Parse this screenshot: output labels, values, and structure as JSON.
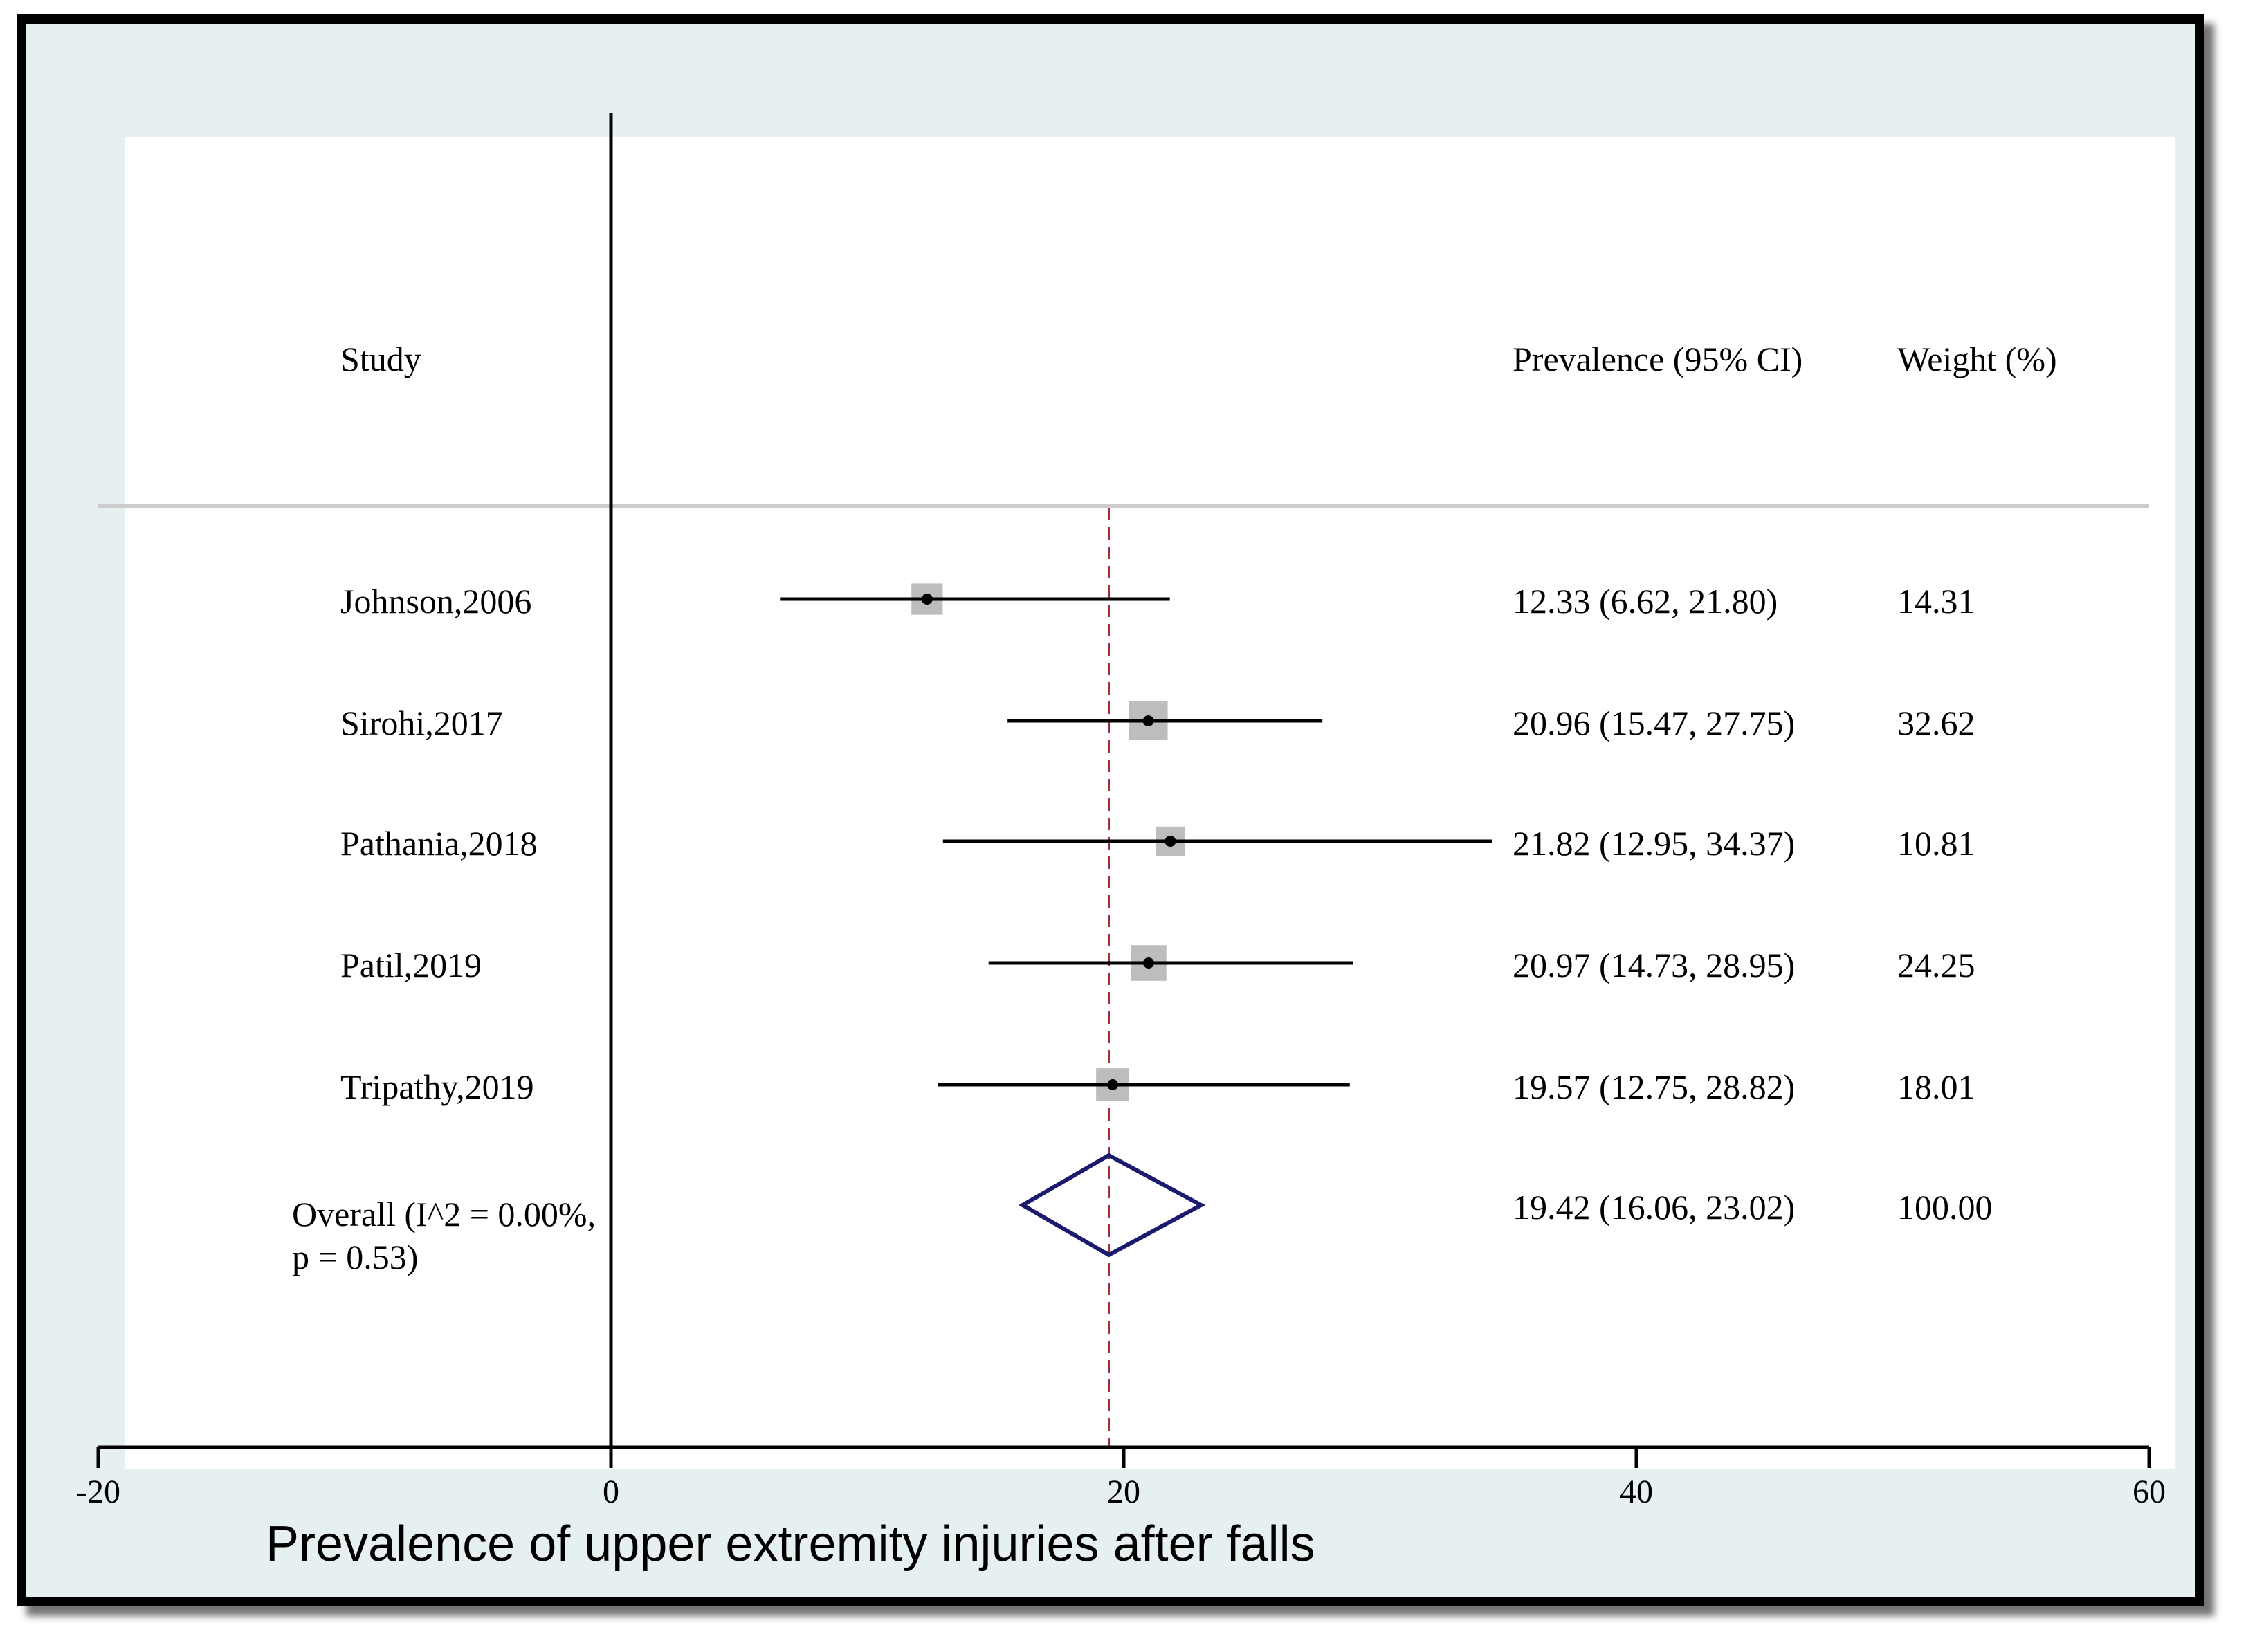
{
  "chart_data": {
    "type": "forest",
    "xlabel": "Prevalence of upper extremity injuries after falls",
    "xlim": [
      -20,
      60
    ],
    "xticks": [
      -20,
      0,
      20,
      40,
      60
    ],
    "headers": {
      "study": "Study",
      "estimate": "Prevalence (95% CI)",
      "weight": "Weight (%)"
    },
    "studies": [
      {
        "name": "Johnson,2006",
        "estimate": 12.33,
        "lower": 6.62,
        "upper": 21.8,
        "ci_text": "12.33 (6.62, 21.80)",
        "weight": 14.31,
        "weight_text": "14.31"
      },
      {
        "name": "Sirohi,2017",
        "estimate": 20.96,
        "lower": 15.47,
        "upper": 27.75,
        "ci_text": "20.96 (15.47, 27.75)",
        "weight": 32.62,
        "weight_text": "32.62"
      },
      {
        "name": "Pathania,2018",
        "estimate": 21.82,
        "lower": 12.95,
        "upper": 34.37,
        "ci_text": "21.82 (12.95, 34.37)",
        "weight": 10.81,
        "weight_text": "10.81"
      },
      {
        "name": "Patil,2019",
        "estimate": 20.97,
        "lower": 14.73,
        "upper": 28.95,
        "ci_text": "20.97 (14.73, 28.95)",
        "weight": 24.25,
        "weight_text": "24.25"
      },
      {
        "name": "Tripathy,2019",
        "estimate": 19.57,
        "lower": 12.75,
        "upper": 28.82,
        "ci_text": "19.57 (12.75, 28.82)",
        "weight": 18.01,
        "weight_text": "18.01"
      }
    ],
    "overall": {
      "label_line1": "Overall (I^2 = 0.00%,",
      "label_line2": "p = 0.53)",
      "estimate": 19.42,
      "lower": 16.06,
      "upper": 23.02,
      "ci_text": "19.42 (16.06, 23.02)",
      "weight_text": "100.00"
    },
    "reference_line": 0,
    "overall_line": 19.42,
    "colors": {
      "frame": "#000000",
      "background": "#e6f0f1",
      "panel": "#ffffff",
      "diamond": "#1a1a6e",
      "overall_line": "#a0303a",
      "box": "#bdbdbd",
      "separator": "#cccccc"
    }
  }
}
